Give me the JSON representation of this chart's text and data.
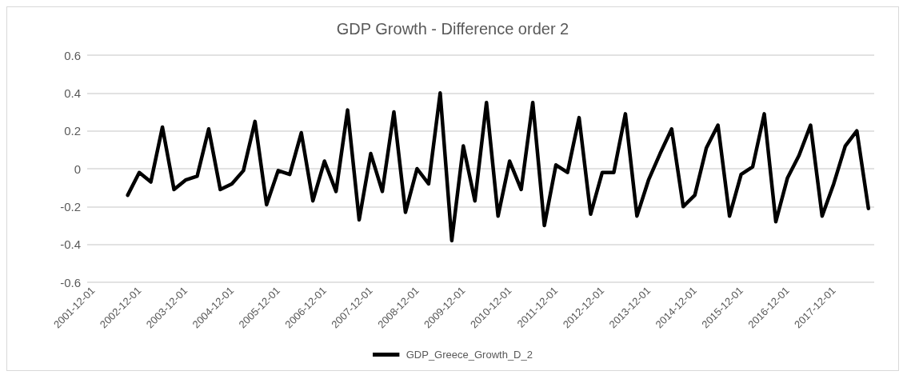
{
  "chart_data": {
    "type": "line",
    "title": "GDP Growth - Difference order 2",
    "categories": [
      "2001-12-01",
      null,
      null,
      null,
      "2002-12-01",
      null,
      null,
      null,
      "2003-12-01",
      null,
      null,
      null,
      "2004-12-01",
      null,
      null,
      null,
      "2005-12-01",
      null,
      null,
      null,
      "2006-12-01",
      null,
      null,
      null,
      "2007-12-01",
      null,
      null,
      null,
      "2008-12-01",
      null,
      null,
      null,
      "2009-12-01",
      null,
      null,
      null,
      "2010-12-01",
      null,
      null,
      null,
      "2011-12-01",
      null,
      null,
      null,
      "2012-12-01",
      null,
      null,
      null,
      "2013-12-01",
      null,
      null,
      null,
      "2014-12-01",
      null,
      null,
      null,
      "2015-12-01",
      null,
      null,
      null,
      "2016-12-01",
      null,
      null,
      null,
      "2017-12-01",
      null,
      null,
      null
    ],
    "series": [
      {
        "name": "GDP_Greece_Growth_D_2",
        "color": "#000000",
        "values": [
          null,
          null,
          null,
          -0.14,
          -0.02,
          -0.07,
          0.22,
          -0.11,
          -0.06,
          -0.04,
          0.21,
          -0.11,
          -0.08,
          -0.01,
          0.25,
          -0.19,
          -0.01,
          -0.03,
          0.19,
          -0.17,
          0.04,
          -0.12,
          0.31,
          -0.27,
          0.08,
          -0.12,
          0.3,
          -0.23,
          0,
          -0.08,
          0.4,
          -0.38,
          0.12,
          -0.17,
          0.35,
          -0.25,
          0.04,
          -0.11,
          0.35,
          -0.3,
          0.02,
          -0.02,
          0.27,
          -0.24,
          -0.02,
          -0.02,
          0.29,
          -0.25,
          -0.06,
          0.08,
          0.21,
          -0.2,
          -0.14,
          0.11,
          0.23,
          -0.25,
          -0.03,
          0.01,
          0.29,
          -0.28,
          -0.05,
          0.07,
          0.23,
          -0.25,
          -0.08,
          0.12,
          0.2,
          -0.21
        ]
      }
    ],
    "ylim": [
      -0.6,
      0.6
    ],
    "yticks": [
      -0.6,
      -0.4,
      -0.2,
      0,
      0.2,
      0.4,
      0.6
    ],
    "grid": "y",
    "legend": "bottom",
    "marker": "none",
    "line_style": "solid"
  }
}
